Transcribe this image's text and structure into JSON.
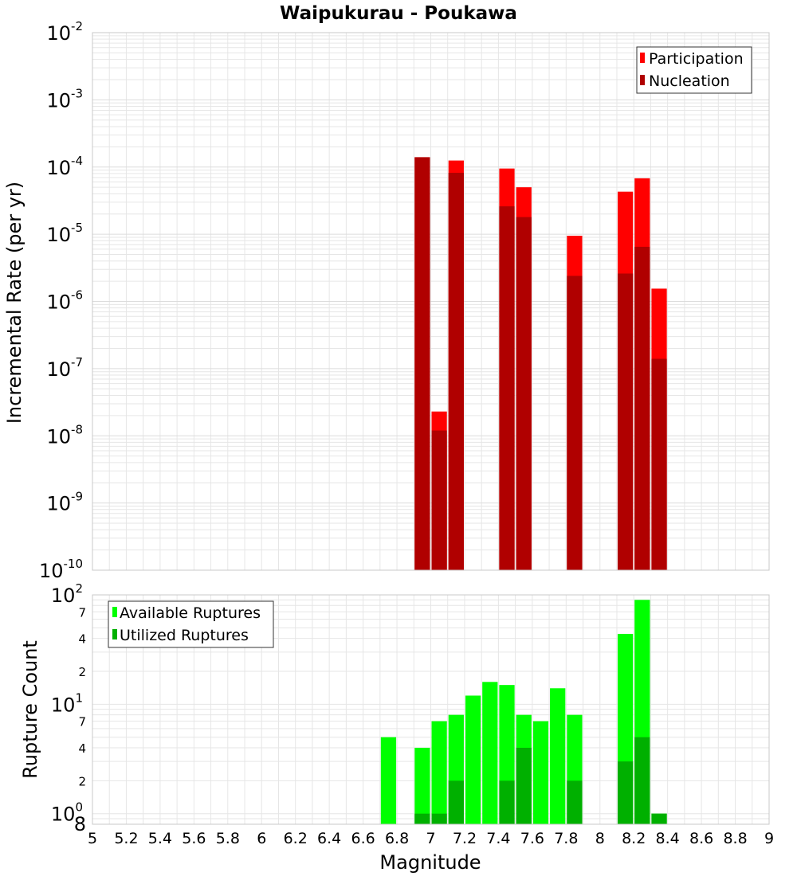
{
  "colors": {
    "participation": "#ff0000",
    "nucleation": "#b00000",
    "available": "#00ff00",
    "utilized": "#00b000",
    "grid": "#e6e6e6",
    "frame": "#c8c8c8"
  },
  "chart_data": [
    {
      "type": "bar",
      "title": "Waipukurau - Poukawa",
      "xlabel": "Magnitude",
      "ylabel": "Incremental Rate (per yr)",
      "xlim": [
        5,
        9
      ],
      "ylim": [
        1e-10,
        0.01
      ],
      "yscale": "log",
      "grid": true,
      "legend_position": "top-right",
      "y_ticks": [
        {
          "base": "10",
          "exp": "-10"
        },
        {
          "base": "10",
          "exp": "-9"
        },
        {
          "base": "10",
          "exp": "-8"
        },
        {
          "base": "10",
          "exp": "-7"
        },
        {
          "base": "10",
          "exp": "-6"
        },
        {
          "base": "10",
          "exp": "-5"
        },
        {
          "base": "10",
          "exp": "-4"
        },
        {
          "base": "10",
          "exp": "-3"
        },
        {
          "base": "10",
          "exp": "-2"
        }
      ],
      "x": [
        6.95,
        7.05,
        7.15,
        7.45,
        7.55,
        7.85,
        8.15,
        8.25,
        8.35
      ],
      "series": [
        {
          "name": "Participation",
          "values": [
            0.00014,
            2.3e-08,
            0.000125,
            9.5e-05,
            5e-05,
            9.5e-06,
            4.3e-05,
            6.8e-05,
            1.55e-06
          ]
        },
        {
          "name": "Nucleation",
          "values": [
            0.00014,
            1.2e-08,
            8.2e-05,
            2.6e-05,
            1.8e-05,
            2.4e-06,
            2.6e-06,
            6.5e-06,
            1.4e-07
          ]
        }
      ]
    },
    {
      "type": "bar",
      "xlabel": "Magnitude",
      "ylabel": "Rupture Count",
      "xlim": [
        5,
        9
      ],
      "ylim": [
        0.8,
        100
      ],
      "yscale": "log",
      "grid": true,
      "legend_position": "top-left",
      "y_major_ticks": [
        {
          "base": "10",
          "exp": "0"
        },
        {
          "base": "10",
          "exp": "1"
        },
        {
          "base": "10",
          "exp": "2"
        }
      ],
      "y_minor_ticks": [
        {
          "value": 0.8,
          "label": "8"
        },
        {
          "value": 2,
          "label": "2"
        },
        {
          "value": 4,
          "label": "4"
        },
        {
          "value": 7,
          "label": "7"
        },
        {
          "value": 20,
          "label": "2"
        },
        {
          "value": 40,
          "label": "4"
        },
        {
          "value": 70,
          "label": "7"
        }
      ],
      "x_ticks": [
        "5",
        "5.2",
        "5.4",
        "5.6",
        "5.8",
        "6",
        "6.2",
        "6.4",
        "6.6",
        "6.8",
        "7",
        "7.2",
        "7.4",
        "7.6",
        "7.8",
        "8",
        "8.2",
        "8.4",
        "8.6",
        "8.8",
        "9"
      ],
      "x": [
        6.75,
        6.95,
        7.05,
        7.15,
        7.25,
        7.35,
        7.45,
        7.55,
        7.65,
        7.75,
        7.85,
        8.15,
        8.25,
        8.35
      ],
      "series": [
        {
          "name": "Available Ruptures",
          "values": [
            5,
            4,
            7,
            8,
            12,
            16,
            15,
            8,
            7,
            14,
            8,
            44,
            90,
            1
          ]
        },
        {
          "name": "Utilized Ruptures",
          "values": [
            0,
            1,
            1,
            2,
            0,
            0,
            2,
            4,
            0,
            0,
            2,
            3,
            5,
            1
          ]
        }
      ]
    }
  ]
}
